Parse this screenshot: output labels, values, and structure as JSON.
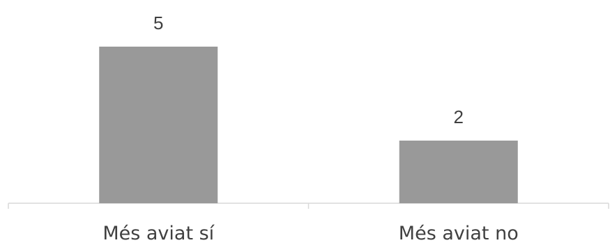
{
  "chart_data": {
    "type": "bar",
    "categories": [
      "Més aviat sí",
      "Més aviat no"
    ],
    "values": [
      5,
      2
    ],
    "title": "",
    "xlabel": "",
    "ylabel": "",
    "ylim": [
      0,
      5
    ],
    "grid": false,
    "legend": "none",
    "data_labels": true,
    "colors": {
      "bar": "#999999",
      "axis": "#d9d9d9",
      "text": "#404040"
    }
  }
}
